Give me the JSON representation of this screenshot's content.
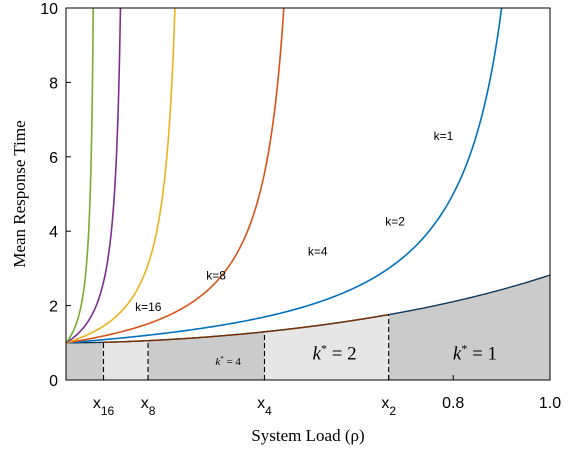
{
  "chart_data": {
    "type": "line",
    "title": "",
    "xlabel": "System Load (ρ)",
    "ylabel": "Mean Response Time",
    "xlim": [
      0,
      1.0
    ],
    "ylim": [
      0,
      10
    ],
    "grid": false,
    "y_ticks": [
      "0",
      "2",
      "4",
      "6",
      "8",
      "10"
    ],
    "x_ticks": [
      {
        "x": 0.0775,
        "main": "x",
        "sub": "16"
      },
      {
        "x": 0.1695,
        "main": "x",
        "sub": "8"
      },
      {
        "x": 0.4101,
        "main": "x",
        "sub": "4"
      },
      {
        "x": 0.6667,
        "main": "x",
        "sub": "2"
      },
      {
        "x": 0.8,
        "main": "0.8",
        "sub": ""
      },
      {
        "x": 1.0,
        "main": "1.0",
        "sub": ""
      }
    ],
    "series": [
      {
        "name": "k=1",
        "k": 1,
        "color": "#0072BD"
      },
      {
        "name": "k=2",
        "k": 2,
        "color": "#D95319"
      },
      {
        "name": "k=4",
        "k": 4,
        "color": "#EDB120"
      },
      {
        "name": "k=8",
        "k": 8,
        "color": "#7E2F8E"
      },
      {
        "name": "k=16",
        "k": 16,
        "color": "#77AC30"
      }
    ],
    "boundary_color": "#0E3A5C",
    "envelope_color": "#7A2E00",
    "regions": [
      {
        "label": "k* = 1",
        "from": 0.6667,
        "to": 1.0,
        "color": "#CBCBCB"
      },
      {
        "label": "k* = 2",
        "from": 0.4101,
        "to": 0.6667,
        "color": "#E6E6E6"
      },
      {
        "label": "k* = 4",
        "from": 0.1695,
        "to": 0.4101,
        "color": "#CBCBCB"
      },
      {
        "label": "",
        "from": 0.0775,
        "to": 0.1695,
        "color": "#E6E6E6"
      },
      {
        "label": "",
        "from": 0.0,
        "to": 0.0775,
        "color": "#CBCBCB"
      }
    ]
  }
}
